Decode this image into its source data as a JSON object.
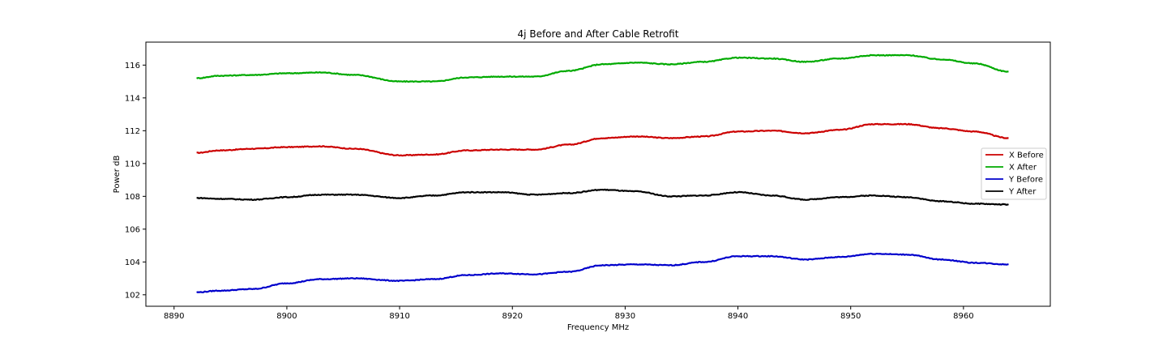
{
  "chart_data": {
    "type": "line",
    "title": "4j Before and After Cable Retrofit",
    "xlabel": "Frequency MHz",
    "ylabel": "Power dB",
    "xlim": [
      8887.5,
      8967.7
    ],
    "ylim": [
      101.3,
      117.4
    ],
    "xticks": [
      8890,
      8900,
      8910,
      8920,
      8930,
      8940,
      8950,
      8960
    ],
    "yticks": [
      102,
      104,
      106,
      108,
      110,
      112,
      114,
      116
    ],
    "grid": false,
    "legend_position": "right",
    "series": [
      {
        "name": "X Before",
        "color": "#cc0000",
        "x": [
          8892,
          8894,
          8897,
          8900,
          8903,
          8906,
          8910,
          8913,
          8916,
          8919,
          8922,
          8925,
          8928,
          8931,
          8934,
          8937,
          8940,
          8943,
          8946,
          8949,
          8952,
          8955,
          8958,
          8961,
          8964
        ],
        "y": [
          110.65,
          110.8,
          110.9,
          111.0,
          111.05,
          110.9,
          110.5,
          110.55,
          110.8,
          110.85,
          110.85,
          111.15,
          111.55,
          111.65,
          111.55,
          111.65,
          111.95,
          112.0,
          111.85,
          112.05,
          112.4,
          112.4,
          112.15,
          111.95,
          111.55
        ]
      },
      {
        "name": "X After",
        "color": "#00aa00",
        "x": [
          8892,
          8894,
          8897,
          8900,
          8903,
          8906,
          8910,
          8913,
          8916,
          8919,
          8922,
          8925,
          8928,
          8931,
          8934,
          8937,
          8940,
          8943,
          8946,
          8949,
          8952,
          8955,
          8958,
          8961,
          8964
        ],
        "y": [
          115.2,
          115.35,
          115.4,
          115.5,
          115.55,
          115.4,
          115.0,
          115.0,
          115.25,
          115.3,
          115.3,
          115.65,
          116.05,
          116.15,
          116.05,
          116.2,
          116.45,
          116.4,
          116.2,
          116.4,
          116.6,
          116.6,
          116.35,
          116.1,
          115.6
        ]
      },
      {
        "name": "Y Before",
        "color": "#0000cc",
        "x": [
          8892,
          8894,
          8897,
          8900,
          8903,
          8906,
          8910,
          8913,
          8916,
          8919,
          8922,
          8925,
          8928,
          8931,
          8934,
          8937,
          8940,
          8943,
          8946,
          8949,
          8952,
          8955,
          8958,
          8961,
          8964
        ],
        "y": [
          102.15,
          102.25,
          102.35,
          102.7,
          102.95,
          103.0,
          102.85,
          102.95,
          103.2,
          103.3,
          103.25,
          103.4,
          103.8,
          103.85,
          103.8,
          104.0,
          104.35,
          104.35,
          104.15,
          104.3,
          104.5,
          104.45,
          104.15,
          103.95,
          103.85
        ]
      },
      {
        "name": "Y After",
        "color": "#000000",
        "x": [
          8892,
          8894,
          8897,
          8900,
          8903,
          8906,
          8910,
          8913,
          8916,
          8919,
          8922,
          8925,
          8928,
          8931,
          8934,
          8937,
          8940,
          8943,
          8946,
          8949,
          8952,
          8955,
          8958,
          8961,
          8964
        ],
        "y": [
          107.9,
          107.85,
          107.8,
          107.95,
          108.1,
          108.1,
          107.9,
          108.05,
          108.25,
          108.25,
          108.1,
          108.2,
          108.4,
          108.3,
          108.0,
          108.05,
          108.25,
          108.05,
          107.8,
          107.95,
          108.05,
          107.95,
          107.7,
          107.55,
          107.5
        ]
      }
    ]
  }
}
